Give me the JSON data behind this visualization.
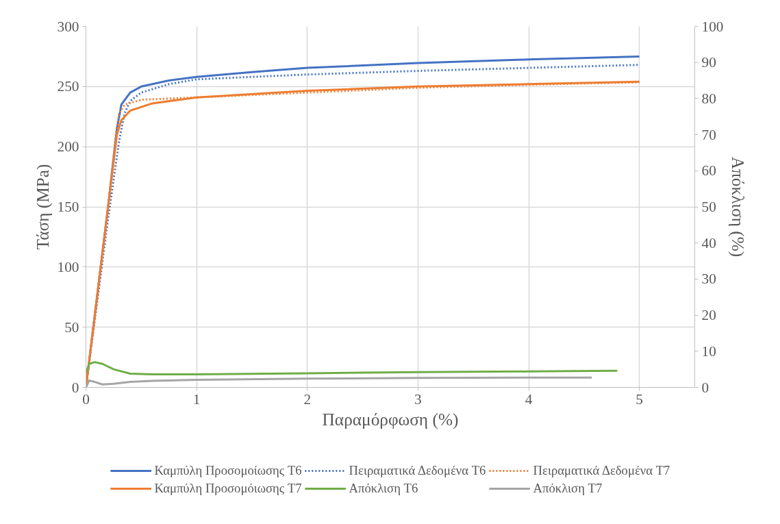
{
  "chart_data": {
    "type": "line",
    "xlabel": "Παραμόρφωση (%)",
    "ylabel": "Τάση (MPa)",
    "y2label": "Απόκλιση (%)",
    "xlim": [
      0,
      5.5
    ],
    "xticks": [
      0,
      1,
      2,
      3,
      4,
      5
    ],
    "ylim": [
      0,
      300
    ],
    "yticks": [
      0,
      50,
      100,
      150,
      200,
      250,
      300
    ],
    "y2lim": [
      0,
      100
    ],
    "y2ticks": [
      0,
      10,
      20,
      30,
      40,
      50,
      60,
      70,
      80,
      90,
      100
    ],
    "grid": true,
    "legend": "bottom",
    "marker": "none",
    "series": [
      {
        "name": "Καμπύλη Προσομοίωσης T6",
        "color": "#4472c4",
        "line_style": "solid",
        "x": [
          0,
          0.1,
          0.2,
          0.28,
          0.32,
          0.4,
          0.5,
          0.75,
          1,
          1.5,
          2,
          3,
          4,
          5
        ],
        "values": [
          0,
          75,
          150,
          215,
          235,
          245,
          250,
          255,
          258,
          262,
          265.5,
          269.5,
          272.5,
          275
        ]
      },
      {
        "name": "Πειραματικά Δεδομένα T6",
        "color": "#4472c4",
        "line_style": "dotted",
        "x": [
          0,
          0.1,
          0.2,
          0.3,
          0.35,
          0.4,
          0.5,
          0.75,
          1,
          2,
          3,
          4,
          5
        ],
        "values": [
          0,
          70,
          140,
          205,
          228,
          238,
          245,
          252,
          256,
          260,
          263,
          265.5,
          268
        ]
      },
      {
        "name": "Πειραματικά Δεδομένα T7",
        "color": "#ed7d31",
        "line_style": "dotted",
        "x": [
          0,
          0.1,
          0.2,
          0.27,
          0.3,
          0.35,
          0.5,
          1,
          2,
          3,
          4,
          5
        ],
        "values": [
          0,
          75,
          150,
          210,
          228,
          235,
          239,
          241,
          245,
          249,
          251.5,
          253.5
        ]
      },
      {
        "name": "Καμπύλη Προσομόιωσης T7",
        "color": "#ed7d31",
        "line_style": "solid",
        "x": [
          0,
          0.1,
          0.2,
          0.28,
          0.32,
          0.4,
          0.6,
          1,
          2,
          3,
          4,
          5
        ],
        "values": [
          0,
          75,
          150,
          210,
          222,
          230,
          236,
          241,
          246.5,
          250,
          252,
          254
        ]
      },
      {
        "name": "Απόκλιση T6",
        "color": "#70ad47",
        "line_style": "solid",
        "axis": "y2",
        "x": [
          0,
          0.03,
          0.08,
          0.15,
          0.25,
          0.4,
          0.6,
          1,
          2,
          3,
          4,
          4.8
        ],
        "values": [
          4.0,
          6.5,
          7.0,
          6.5,
          5.0,
          3.8,
          3.6,
          3.6,
          3.9,
          4.2,
          4.4,
          4.6
        ]
      },
      {
        "name": "Απόκλιση T7",
        "color": "#a5a5a5",
        "line_style": "solid",
        "axis": "y2",
        "x": [
          0,
          0.03,
          0.08,
          0.15,
          0.25,
          0.4,
          0.6,
          1,
          2,
          3,
          4,
          4.57
        ],
        "values": [
          0,
          1.9,
          1.5,
          0.8,
          1.0,
          1.5,
          1.8,
          2.1,
          2.4,
          2.6,
          2.7,
          2.7
        ]
      }
    ]
  }
}
